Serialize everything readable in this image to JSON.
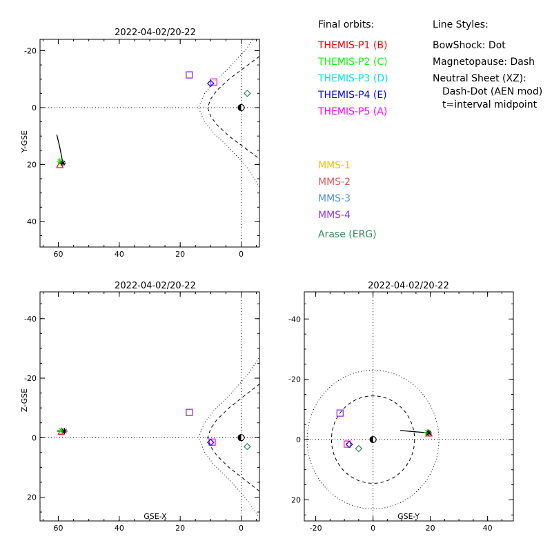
{
  "chart_data": [
    {
      "type": "scatter",
      "title": "2022-04-02/20-22",
      "xlabel": "",
      "ylabel": "Y-GSE",
      "xlim": [
        66,
        -6
      ],
      "ylim": [
        -24,
        49
      ],
      "xticks": [
        60,
        40,
        20,
        0
      ],
      "yticks": [
        -20,
        0,
        20,
        40
      ],
      "reference_lines": {
        "x": 0,
        "y": 0,
        "style": "dotted"
      },
      "earth": [
        0,
        0
      ],
      "bow_shock": [
        [
          -6,
          -28
        ],
        [
          -2,
          -21
        ],
        [
          4,
          -14
        ],
        [
          9,
          -9
        ],
        [
          12,
          -5
        ],
        [
          14,
          0
        ],
        [
          12,
          5
        ],
        [
          9,
          9
        ],
        [
          4,
          14
        ],
        [
          -2,
          21
        ],
        [
          -6,
          28
        ]
      ],
      "magnetopause": [
        [
          -6,
          -18
        ],
        [
          -1,
          -14
        ],
        [
          4,
          -10
        ],
        [
          8,
          -6
        ],
        [
          10,
          -3
        ],
        [
          11,
          0
        ],
        [
          10,
          3
        ],
        [
          8,
          6
        ],
        [
          4,
          10
        ],
        [
          -1,
          14
        ],
        [
          -6,
          18
        ]
      ],
      "markers": [
        {
          "series": "THEMIS-P1 (B)",
          "x": 59.5,
          "y": 20.0,
          "symbol": "triangle"
        },
        {
          "series": "THEMIS-P2 (C)",
          "x": 59.5,
          "y": 18.8,
          "symbol": "asterisk"
        },
        {
          "series": "THEMIS-P5 (A)",
          "x": 17.0,
          "y": -11.5,
          "symbol": "square"
        },
        {
          "series": "MMS-4",
          "x": 17.0,
          "y": -11.5,
          "symbol": "square"
        },
        {
          "series": "THEMIS-P5 (A)",
          "x": 9.0,
          "y": -9.0,
          "symbol": "square"
        },
        {
          "series": "THEMIS-P4 (E)",
          "x": 10.0,
          "y": -8.5,
          "symbol": "diamond"
        },
        {
          "series": "Arase (ERG)",
          "x": -2.0,
          "y": -5.0,
          "symbol": "diamond"
        }
      ],
      "tracks": [
        {
          "series": "THEMIS-P2 (C)",
          "points": [
            [
              60.5,
              9.5
            ],
            [
              59.5,
              14.0
            ],
            [
              58.5,
              19.5
            ]
          ]
        }
      ]
    },
    {
      "type": "scatter",
      "title": "2022-04-02/20-22",
      "xlabel": "GSE-X",
      "ylabel": "Z-GSE",
      "xlim": [
        66,
        -6
      ],
      "ylim": [
        -49,
        28
      ],
      "xticks": [
        60,
        40,
        20,
        0
      ],
      "yticks": [
        20,
        0,
        -20,
        -40
      ],
      "reference_lines": {
        "x": 0,
        "y": 0,
        "style": "dotted"
      },
      "earth": [
        0,
        0
      ],
      "bow_shock": [
        [
          -6,
          27
        ],
        [
          -2,
          21
        ],
        [
          4,
          14
        ],
        [
          9,
          9
        ],
        [
          12,
          5
        ],
        [
          14,
          0
        ],
        [
          12,
          -5
        ],
        [
          9,
          -9
        ],
        [
          4,
          -14
        ],
        [
          -2,
          -21
        ],
        [
          -6,
          -27
        ]
      ],
      "magnetopause": [
        [
          -6,
          18
        ],
        [
          -1,
          14
        ],
        [
          4,
          10
        ],
        [
          8,
          6
        ],
        [
          10,
          3
        ],
        [
          11,
          0
        ],
        [
          10,
          -3
        ],
        [
          8,
          -6
        ],
        [
          4,
          -10
        ],
        [
          -1,
          -14
        ],
        [
          -6,
          -18
        ]
      ],
      "markers": [
        {
          "series": "THEMIS-P1 (B)",
          "x": 59.0,
          "y": -2.2,
          "symbol": "triangle"
        },
        {
          "series": "THEMIS-P2 (C)",
          "x": 59.0,
          "y": -2.4,
          "symbol": "asterisk"
        },
        {
          "series": "THEMIS-P5 (A)",
          "x": 17.0,
          "y": -8.5,
          "symbol": "square"
        },
        {
          "series": "MMS-4",
          "x": 17.0,
          "y": -8.5,
          "symbol": "square"
        },
        {
          "series": "THEMIS-P5 (A)",
          "x": 9.5,
          "y": 1.5,
          "symbol": "square"
        },
        {
          "series": "THEMIS-P4 (E)",
          "x": 10.0,
          "y": 1.6,
          "symbol": "diamond"
        },
        {
          "series": "Arase (ERG)",
          "x": -2.0,
          "y": 3.0,
          "symbol": "diamond"
        }
      ],
      "tracks": [
        {
          "series": "THEMIS-P2 (C)",
          "points": [
            [
              60.5,
              -2.2
            ],
            [
              58.0,
              -2.2
            ]
          ]
        }
      ]
    },
    {
      "type": "scatter",
      "title": "2022-04-02/20-22",
      "xlabel": "GSE-Y",
      "ylabel": "",
      "xlim": [
        -24,
        49
      ],
      "ylim": [
        -49,
        27
      ],
      "xticks": [
        -20,
        0,
        20,
        40
      ],
      "yticks": [
        20,
        0,
        -20,
        -40
      ],
      "reference_lines": {
        "x": 0,
        "y": 0,
        "style": "dotted"
      },
      "earth": [
        0,
        0
      ],
      "outer_circle_radius": 23,
      "inner_circle_radius": 14.5,
      "markers": [
        {
          "series": "THEMIS-P1 (B)",
          "x": 19.5,
          "y": -2.2,
          "symbol": "triangle"
        },
        {
          "series": "THEMIS-P2 (C)",
          "x": 19.0,
          "y": -2.4,
          "symbol": "asterisk"
        },
        {
          "series": "THEMIS-P5 (A)",
          "x": -11.5,
          "y": -8.8,
          "symbol": "square"
        },
        {
          "series": "MMS-4",
          "x": -11.5,
          "y": -8.8,
          "symbol": "square"
        },
        {
          "series": "THEMIS-P5 (A)",
          "x": -9.0,
          "y": 1.5,
          "symbol": "square"
        },
        {
          "series": "THEMIS-P4 (E)",
          "x": -8.3,
          "y": 1.6,
          "symbol": "diamond"
        },
        {
          "series": "Arase (ERG)",
          "x": -5.0,
          "y": 3.0,
          "symbol": "diamond"
        }
      ],
      "tracks": [
        {
          "series": "THEMIS-P2 (C)",
          "points": [
            [
              9.5,
              -3.0
            ],
            [
              14.5,
              -2.6
            ],
            [
              19.5,
              -2.2
            ]
          ]
        }
      ]
    }
  ],
  "legend": {
    "header": "Final orbits:",
    "entries": [
      {
        "label": "THEMIS-P1 (B)",
        "color": "#ff0000"
      },
      {
        "label": "THEMIS-P2 (C)",
        "color": "#00ff00"
      },
      {
        "label": "THEMIS-P3 (D)",
        "color": "#00e5e5"
      },
      {
        "label": "THEMIS-P4 (E)",
        "color": "#0000ff"
      },
      {
        "label": "THEMIS-P5 (A)",
        "color": "#ff00ff"
      }
    ],
    "mission_entries": [
      {
        "label": "MMS-1",
        "color": "#ffbb00"
      },
      {
        "label": "MMS-2",
        "color": "#e0585e"
      },
      {
        "label": "MMS-3",
        "color": "#4f8fdf"
      },
      {
        "label": "MMS-4",
        "color": "#9537d8"
      },
      {
        "label": "Arase (ERG)",
        "color": "#2e8b57"
      }
    ]
  },
  "line_styles": {
    "header": "Line Styles:",
    "bow_shock": "BowShock: Dot",
    "magnetopause": "Magnetopause: Dash",
    "neutral_sheet": "Neutral Sheet (XZ):",
    "neutral_sheet_detail": "Dash-Dot (AEN mod)",
    "neutral_sheet_time": "t=interval midpoint"
  }
}
